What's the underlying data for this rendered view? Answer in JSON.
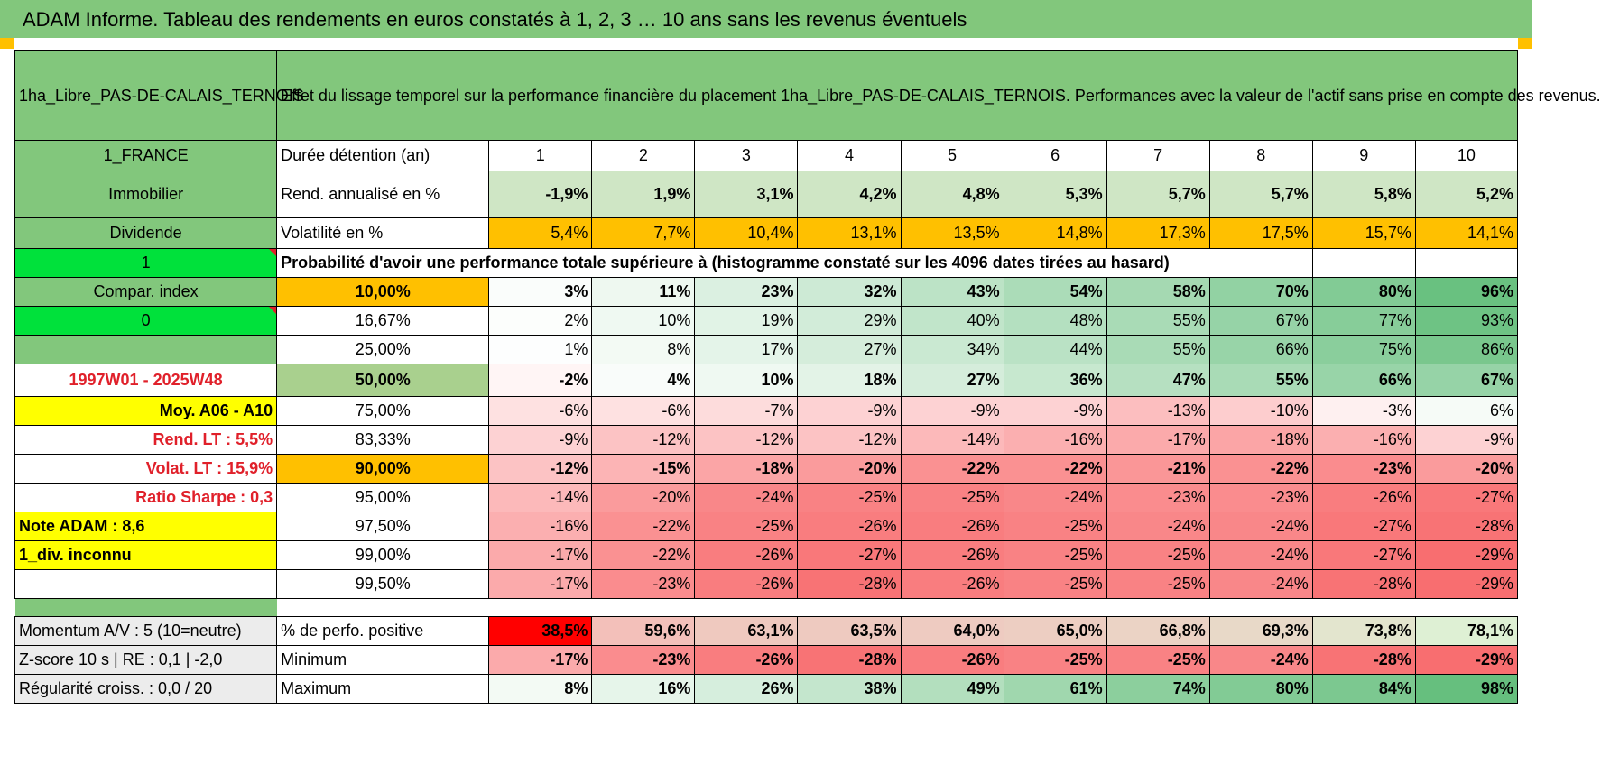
{
  "title": "ADAM Informe. Tableau des rendements en euros constatés à 1, 2, 3 … 10 ans sans les revenus éventuels",
  "colors": {
    "green": "#82c77c",
    "lime": "#00e13b",
    "orange": "#ffc000",
    "yellow": "#ffff00",
    "red_text": "#e0202a"
  },
  "header": {
    "asset_name": "1ha_Libre_PAS-DE-CALAIS_TERNOIS",
    "description": "Effet du lissage temporel sur la performance financière du placement 1ha_Libre_PAS-DE-CALAIS_TERNOIS. Performances avec la valeur de l'actif sans prise en compte des revenus."
  },
  "years": [
    "1",
    "2",
    "3",
    "4",
    "5",
    "6",
    "7",
    "8",
    "9",
    "10"
  ],
  "side": {
    "country": "1_FRANCE",
    "category": "Immobilier",
    "dividend": "Dividende",
    "one": "1",
    "compar_index": "Compar. index",
    "zero": "0",
    "period": "1997W01 - 2025W48",
    "moy": "Moy. A06 - A10",
    "rend_lt": "Rend. LT :    5,5%",
    "volat_lt": "Volat. LT :    15,9%",
    "sharpe": "Ratio Sharpe :    0,3",
    "note": "Note ADAM : 8,6",
    "div": "1_div. inconnu"
  },
  "rows": {
    "duration_label": "Durée détention (an)",
    "rend_label": "Rend. annualisé en %",
    "rend": [
      "-1,9%",
      "1,9%",
      "3,1%",
      "4,2%",
      "4,8%",
      "5,3%",
      "5,7%",
      "5,7%",
      "5,8%",
      "5,2%"
    ],
    "vol_label": "Volatilité en %",
    "vol": [
      "5,4%",
      "7,7%",
      "10,4%",
      "13,1%",
      "13,5%",
      "14,8%",
      "17,3%",
      "17,5%",
      "15,7%",
      "14,1%"
    ],
    "prob_label": "Probabilité d'avoir une performance totale supérieure à (histogramme constaté sur les 4096 dates tirées au hasard)"
  },
  "quantiles": [
    {
      "q": "10,00%",
      "v": [
        "3%",
        "11%",
        "23%",
        "32%",
        "43%",
        "54%",
        "58%",
        "70%",
        "80%",
        "96%"
      ]
    },
    {
      "q": "16,67%",
      "v": [
        "2%",
        "10%",
        "19%",
        "29%",
        "40%",
        "48%",
        "55%",
        "67%",
        "77%",
        "93%"
      ]
    },
    {
      "q": "25,00%",
      "v": [
        "1%",
        "8%",
        "17%",
        "27%",
        "34%",
        "44%",
        "55%",
        "66%",
        "75%",
        "86%"
      ]
    },
    {
      "q": "50,00%",
      "v": [
        "-2%",
        "4%",
        "10%",
        "18%",
        "27%",
        "36%",
        "47%",
        "55%",
        "66%",
        "67%"
      ]
    },
    {
      "q": "75,00%",
      "v": [
        "-6%",
        "-6%",
        "-7%",
        "-9%",
        "-9%",
        "-9%",
        "-13%",
        "-10%",
        "-3%",
        "6%"
      ]
    },
    {
      "q": "83,33%",
      "v": [
        "-9%",
        "-12%",
        "-12%",
        "-12%",
        "-14%",
        "-16%",
        "-17%",
        "-18%",
        "-16%",
        "-9%"
      ]
    },
    {
      "q": "90,00%",
      "v": [
        "-12%",
        "-15%",
        "-18%",
        "-20%",
        "-22%",
        "-22%",
        "-21%",
        "-22%",
        "-23%",
        "-20%"
      ]
    },
    {
      "q": "95,00%",
      "v": [
        "-14%",
        "-20%",
        "-24%",
        "-25%",
        "-25%",
        "-24%",
        "-23%",
        "-23%",
        "-26%",
        "-27%"
      ]
    },
    {
      "q": "97,50%",
      "v": [
        "-16%",
        "-22%",
        "-25%",
        "-26%",
        "-26%",
        "-25%",
        "-24%",
        "-24%",
        "-27%",
        "-28%"
      ]
    },
    {
      "q": "99,00%",
      "v": [
        "-17%",
        "-22%",
        "-26%",
        "-27%",
        "-26%",
        "-25%",
        "-25%",
        "-24%",
        "-27%",
        "-29%"
      ]
    },
    {
      "q": "99,50%",
      "v": [
        "-17%",
        "-23%",
        "-26%",
        "-28%",
        "-26%",
        "-25%",
        "-25%",
        "-24%",
        "-28%",
        "-29%"
      ]
    }
  ],
  "bottom": {
    "momentum": "Momentum A/V : 5 (10=neutre)",
    "pos_label": "% de perfo. positive",
    "pos": [
      "38,5%",
      "59,6%",
      "63,1%",
      "63,5%",
      "64,0%",
      "65,0%",
      "66,8%",
      "69,3%",
      "73,8%",
      "78,1%"
    ],
    "zscore": "Z-score 10 s | RE : 0,1 | -2,0",
    "min_label": "Minimum",
    "min": [
      "-17%",
      "-23%",
      "-26%",
      "-28%",
      "-26%",
      "-25%",
      "-25%",
      "-24%",
      "-28%",
      "-29%"
    ],
    "regul": "Régularité croiss. : 0,0 / 20",
    "max_label": "Maximum",
    "max": [
      "8%",
      "16%",
      "26%",
      "38%",
      "49%",
      "61%",
      "74%",
      "80%",
      "84%",
      "98%"
    ]
  }
}
